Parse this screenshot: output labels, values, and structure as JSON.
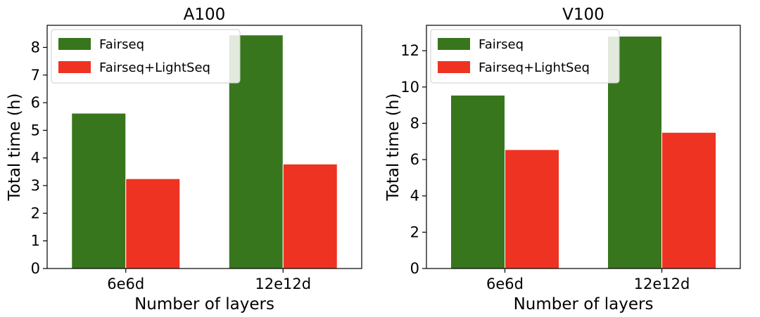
{
  "chart_data": [
    {
      "type": "bar",
      "title": "A100",
      "xlabel": "Number of layers",
      "ylabel": "Total time (h)",
      "categories": [
        "6e6d",
        "12e12d"
      ],
      "ylim": [
        0,
        8.8
      ],
      "yticks": [
        0,
        1,
        2,
        3,
        4,
        5,
        6,
        7,
        8
      ],
      "grid": false,
      "legend_position": "top-left",
      "series": [
        {
          "name": "Fairseq",
          "values": [
            5.62,
            8.45
          ],
          "color": "#38761d"
        },
        {
          "name": "Fairseq+LightSeq",
          "values": [
            3.25,
            3.78
          ],
          "color": "#ef3323"
        }
      ]
    },
    {
      "type": "bar",
      "title": "V100",
      "xlabel": "Number of layers",
      "ylabel": "Total time (h)",
      "categories": [
        "6e6d",
        "12e12d"
      ],
      "ylim": [
        0,
        13.4
      ],
      "yticks": [
        0,
        2,
        4,
        6,
        8,
        10,
        12
      ],
      "grid": false,
      "legend_position": "top-left",
      "series": [
        {
          "name": "Fairseq",
          "values": [
            9.55,
            12.8
          ],
          "color": "#38761d"
        },
        {
          "name": "Fairseq+LightSeq",
          "values": [
            6.55,
            7.5
          ],
          "color": "#ef3323"
        }
      ]
    }
  ]
}
